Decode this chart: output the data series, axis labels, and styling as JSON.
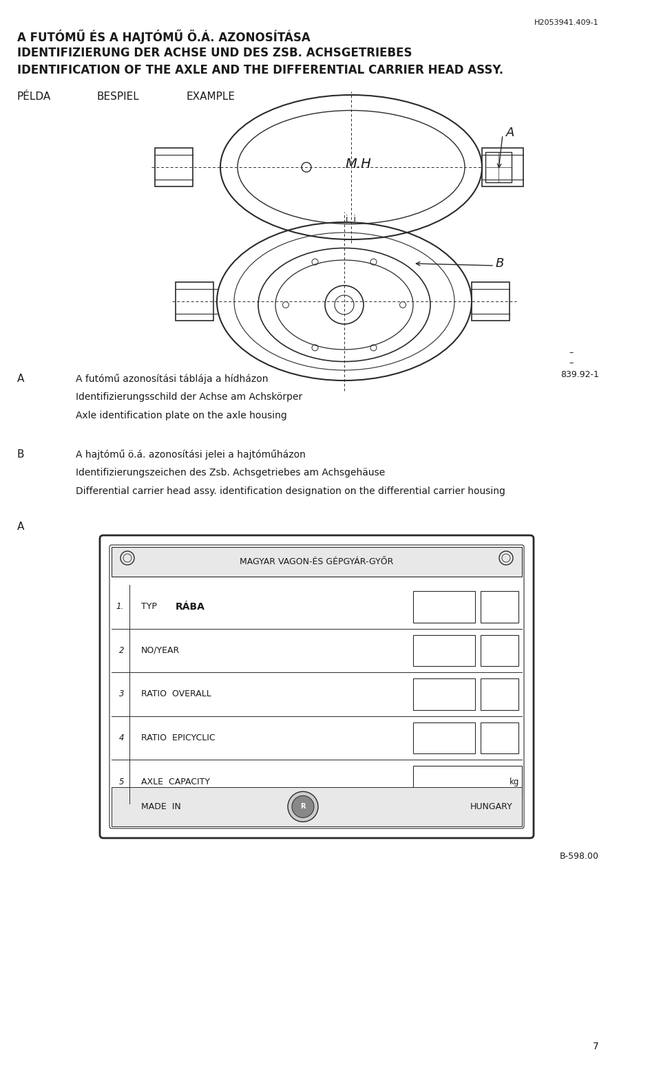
{
  "page_title_line1": "A FUTÓMŰ ÉS A HAJTÓMŰ Ö.Á. AZONOSÍTÁSA",
  "page_title_line2": "IDENTIFIZIERUNG DER ACHSE UND DES ZSB. ACHSGETRIEBES",
  "page_title_line3": "IDENTIFICATION OF THE AXLE AND THE DIFFERENTIAL CARRIER HEAD ASSY.",
  "doc_number": "H2053941.409-1",
  "pelda_label": "PÉLDA",
  "bespiel_label": "BESPIEL",
  "example_label": "EXAMPLE",
  "label_A": "A",
  "label_B": "B",
  "ref_num_1": "839.92-1",
  "text_A_line1": "A futómű azonosítási táblája a hídházon",
  "text_A_line2": "Identifizierungsschild der Achse am Achskörper",
  "text_A_line3": "Axle identification plate on the axle housing",
  "text_B_line1": "A hajtómű ö.á. azonosítási jelei a hajtóműházon",
  "text_B_line2": "Identifizierungszeichen des Zsb. Achsgetriebes am Achsgehäuse",
  "text_B_line3": "Differential carrier head assy. identification designation on the differential carrier housing",
  "ref_num_2": "B-598.00",
  "page_number": "7",
  "bg_color": "#ffffff",
  "text_color": "#1a1a1a",
  "line_color": "#2a2a2a",
  "plate_header": "MAGYAR VAGON-ÉS GÉPGYÁR-GYŐR",
  "plate_rows": [
    "TYP  RÁBA",
    "NO/YEAR",
    "RATIO  OVERALL",
    "RATIO  EPICYCLIC",
    "AXLE  CAPACITY"
  ],
  "plate_row_numbers": [
    "1.",
    "2",
    "3",
    "4",
    "5"
  ],
  "plate_footer": "MADE IN        HUNGARY",
  "plate_kg": "kg"
}
